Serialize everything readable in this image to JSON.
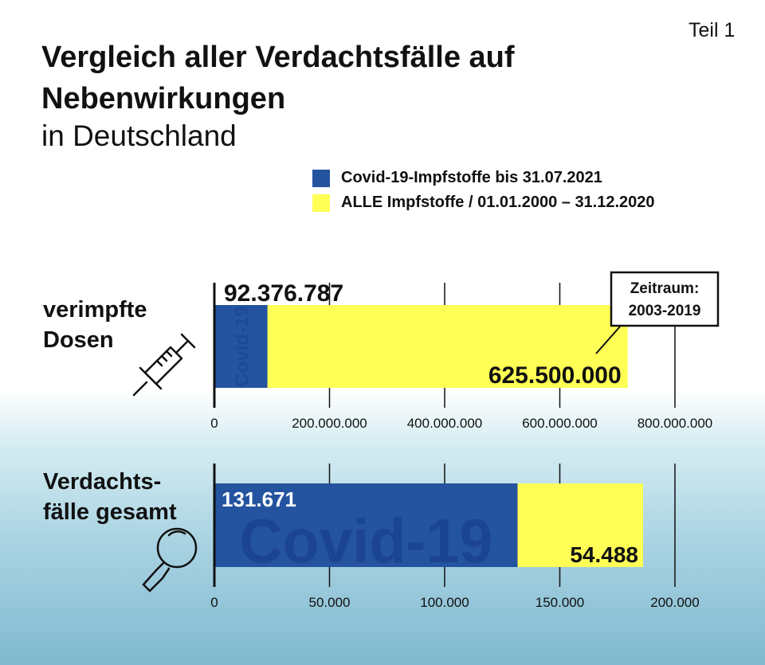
{
  "header": {
    "title": "Vergleich aller Verdachtsfälle auf Nebenwirkungen",
    "subtitle": "in Deutschland",
    "part_label": "Teil 1"
  },
  "legend": [
    {
      "label": "Covid-19-Impfstoffe bis 31.07.2021",
      "color": "#2453a0"
    },
    {
      "label": "ALLE Impfstoffe / 01.01.2000 – 31.12.2020",
      "color": "#ffff55"
    }
  ],
  "chart_data": [
    {
      "type": "bar",
      "orientation": "horizontal",
      "stacked": true,
      "category": "verimpfte Dosen",
      "category_lines": [
        "verimpfte",
        "Dosen"
      ],
      "icon": "syringe-icon",
      "series": [
        {
          "name": "Covid-19-Impfstoffe bis 31.07.2021",
          "value": 92376787,
          "label": "92.376.787",
          "watermark": "Covid-19"
        },
        {
          "name": "ALLE Impfstoffe / 01.01.2000 – 31.12.2020",
          "value": 625500000,
          "label": "625.500.000"
        }
      ],
      "annotation": {
        "line1": "Zeitraum:",
        "line2": "2003-2019"
      },
      "xlim": [
        0,
        800000000
      ],
      "ticks": [
        0,
        200000000,
        400000000,
        600000000,
        800000000
      ],
      "tick_labels": [
        "0",
        "200.000.000",
        "400.000.000",
        "600.000.000",
        "800.000.000"
      ],
      "grid": true
    },
    {
      "type": "bar",
      "orientation": "horizontal",
      "stacked": true,
      "category": "Verdachtsfälle gesamt",
      "category_lines": [
        "Verdachts-",
        "fälle gesamt"
      ],
      "icon": "magnifier-icon",
      "series": [
        {
          "name": "Covid-19-Impfstoffe bis 31.07.2021",
          "value": 131671,
          "label": "131.671",
          "watermark": "Covid-19"
        },
        {
          "name": "ALLE Impfstoffe / 01.01.2000 – 31.12.2020",
          "value": 54488,
          "label": "54.488"
        }
      ],
      "xlim": [
        0,
        200000
      ],
      "ticks": [
        0,
        50000,
        100000,
        150000,
        200000
      ],
      "tick_labels": [
        "0",
        "50.000",
        "100.000",
        "150.000",
        "200.000"
      ],
      "grid": true
    }
  ]
}
